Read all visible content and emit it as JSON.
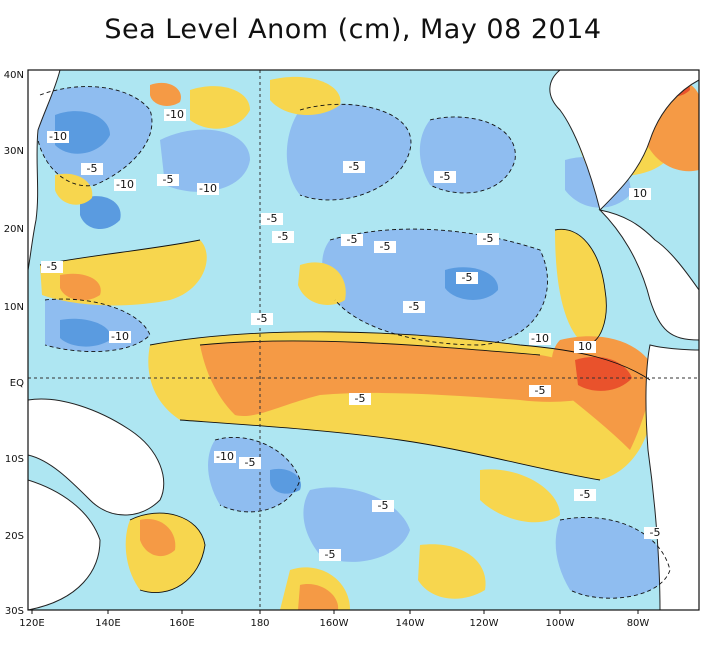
{
  "title": "Sea Level Anom (cm), May 08 2014",
  "x_ticks": [
    "120E",
    "140E",
    "160E",
    "180",
    "160W",
    "140W",
    "120W",
    "100W",
    "80W"
  ],
  "y_ticks": [
    "40N",
    "30N",
    "20N",
    "10N",
    "EQ",
    "10S",
    "20S",
    "30S"
  ],
  "contour_labels": [
    "-10",
    "-10",
    "-5",
    "-10",
    "-5",
    "-10",
    "-5",
    "-5",
    "-5",
    "-5",
    "-5",
    "-5",
    "-5",
    "-5",
    "-5",
    "-10",
    "-10",
    "-5",
    "-5",
    "10",
    "10",
    "-10",
    "-5",
    "-5",
    "-5",
    "-5",
    "-5",
    "-5",
    "-5"
  ],
  "colors": {
    "deep_blue": "#5a9be0",
    "blue": "#8fbdf0",
    "light_blue": "#aee6f2",
    "yellow": "#f7d64e",
    "orange": "#f59a45",
    "red": "#e9522c",
    "dark_red": "#a01e12",
    "land": "#ffffff"
  }
}
